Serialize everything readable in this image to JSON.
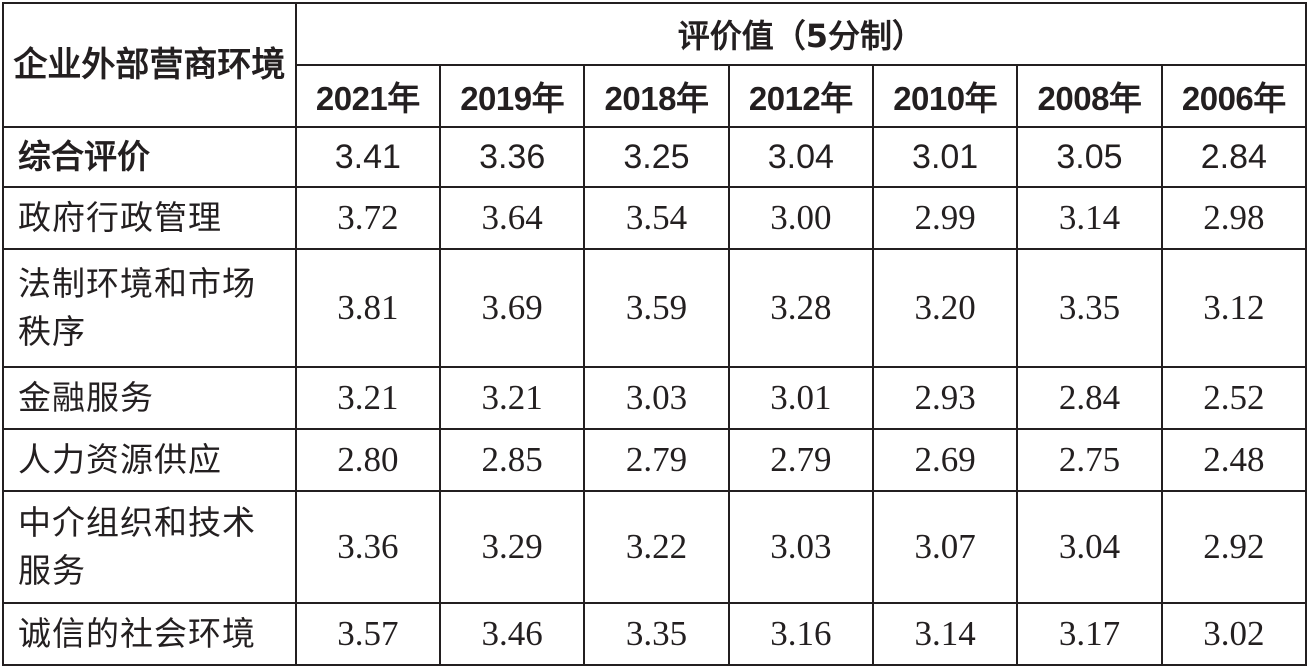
{
  "table": {
    "corner_header": "企业外部营商环境",
    "group_header": "评价值（5分制）",
    "years": [
      "2021年",
      "2019年",
      "2018年",
      "2012年",
      "2010年",
      "2008年",
      "2006年"
    ],
    "rows": [
      {
        "label": "综合评价",
        "values": [
          "3.41",
          "3.36",
          "3.25",
          "3.04",
          "3.01",
          "3.05",
          "2.84"
        ]
      },
      {
        "label": "政府行政管理",
        "values": [
          "3.72",
          "3.64",
          "3.54",
          "3.00",
          "2.99",
          "3.14",
          "2.98"
        ]
      },
      {
        "label": "法制环境和市场秩序",
        "values": [
          "3.81",
          "3.69",
          "3.59",
          "3.28",
          "3.20",
          "3.35",
          "3.12"
        ]
      },
      {
        "label": "金融服务",
        "values": [
          "3.21",
          "3.21",
          "3.03",
          "3.01",
          "2.93",
          "2.84",
          "2.52"
        ]
      },
      {
        "label": "人力资源供应",
        "values": [
          "2.80",
          "2.85",
          "2.79",
          "2.79",
          "2.69",
          "2.75",
          "2.48"
        ]
      },
      {
        "label": "中介组织和技术服务",
        "values": [
          "3.36",
          "3.29",
          "3.22",
          "3.03",
          "3.07",
          "3.04",
          "2.92"
        ]
      },
      {
        "label": "诚信的社会环境",
        "values": [
          "3.57",
          "3.46",
          "3.35",
          "3.16",
          "3.14",
          "3.17",
          "3.02"
        ]
      }
    ]
  }
}
